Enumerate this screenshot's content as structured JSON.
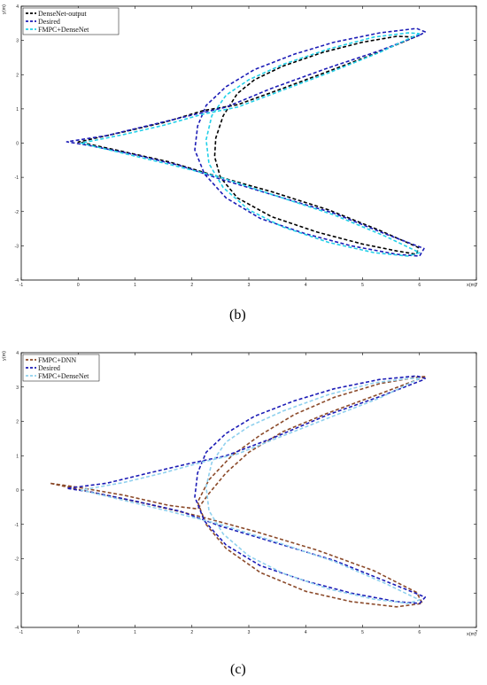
{
  "captions": {
    "b": "(b)",
    "c": "(c)"
  },
  "chart_data": [
    {
      "id": "b",
      "type": "line",
      "xlabel": "x(m)",
      "ylabel": "y(m)",
      "xlim": [
        -1,
        7
      ],
      "ylim": [
        -4,
        4
      ],
      "xticks": [
        -1,
        0,
        1,
        2,
        3,
        4,
        5,
        6,
        7
      ],
      "yticks": [
        -4,
        -3,
        -2,
        -1,
        0,
        1,
        2,
        3,
        4
      ],
      "legend_position": "top-left",
      "series": [
        {
          "name": "DenseNet-output",
          "color": "#000000",
          "points": [
            [
              5.92,
              3.1
            ],
            [
              5.2,
              2.6
            ],
            [
              4.4,
              2.1
            ],
            [
              3.6,
              1.6
            ],
            [
              2.8,
              1.12
            ],
            [
              2.2,
              0.95
            ],
            [
              1.5,
              0.6
            ],
            [
              0.8,
              0.33
            ],
            [
              0,
              0.03
            ],
            [
              0.05,
              0.02
            ],
            [
              0.8,
              -0.25
            ],
            [
              1.6,
              -0.55
            ],
            [
              2.4,
              -0.95
            ],
            [
              3.4,
              -1.42
            ],
            [
              4.4,
              -1.95
            ],
            [
              5.3,
              -2.55
            ],
            [
              5.98,
              -3.05
            ],
            [
              5.95,
              -3.25
            ],
            [
              5.6,
              -3.15
            ],
            [
              5.0,
              -2.95
            ],
            [
              4.2,
              -2.6
            ],
            [
              3.4,
              -2.15
            ],
            [
              2.8,
              -1.6
            ],
            [
              2.5,
              -1.0
            ],
            [
              2.4,
              -0.4
            ],
            [
              2.42,
              0.15
            ],
            [
              2.55,
              0.8
            ],
            [
              2.8,
              1.45
            ],
            [
              3.1,
              1.85
            ],
            [
              3.6,
              2.25
            ],
            [
              4.3,
              2.65
            ],
            [
              5.0,
              2.95
            ],
            [
              5.6,
              3.12
            ],
            [
              5.92,
              3.1
            ]
          ]
        },
        {
          "name": "Desired",
          "color": "#1c1cb6",
          "points": [
            [
              6.0,
              3.15
            ],
            [
              5.3,
              2.7
            ],
            [
              4.4,
              2.2
            ],
            [
              3.4,
              1.6
            ],
            [
              2.6,
              1.05
            ],
            [
              1.9,
              0.78
            ],
            [
              1.2,
              0.5
            ],
            [
              0.5,
              0.22
            ],
            [
              -0.2,
              0.04
            ],
            [
              0.2,
              -0.07
            ],
            [
              1.0,
              -0.34
            ],
            [
              1.8,
              -0.66
            ],
            [
              2.5,
              -1.05
            ],
            [
              3.5,
              -1.55
            ],
            [
              4.5,
              -2.05
            ],
            [
              5.4,
              -2.65
            ],
            [
              6.08,
              -3.08
            ],
            [
              6.0,
              -3.3
            ],
            [
              5.6,
              -3.25
            ],
            [
              4.8,
              -3.0
            ],
            [
              4.0,
              -2.65
            ],
            [
              3.2,
              -2.2
            ],
            [
              2.6,
              -1.6
            ],
            [
              2.22,
              -0.9
            ],
            [
              2.05,
              -0.2
            ],
            [
              2.1,
              0.5
            ],
            [
              2.25,
              1.1
            ],
            [
              2.6,
              1.65
            ],
            [
              3.1,
              2.15
            ],
            [
              3.8,
              2.6
            ],
            [
              4.5,
              2.95
            ],
            [
              5.3,
              3.22
            ],
            [
              5.95,
              3.35
            ],
            [
              6.1,
              3.25
            ],
            [
              6.0,
              3.15
            ]
          ]
        },
        {
          "name": "FMPC+DenseNet",
          "color": "#22d0e8",
          "points": [
            [
              6.0,
              3.2
            ],
            [
              5.3,
              2.65
            ],
            [
              4.4,
              2.05
            ],
            [
              3.6,
              1.55
            ],
            [
              2.8,
              1.05
            ],
            [
              2.2,
              0.85
            ],
            [
              1.5,
              0.52
            ],
            [
              0.8,
              0.25
            ],
            [
              0.05,
              0.0
            ],
            [
              0.8,
              -0.3
            ],
            [
              1.6,
              -0.62
            ],
            [
              2.5,
              -1.0
            ],
            [
              3.5,
              -1.55
            ],
            [
              4.5,
              -2.1
            ],
            [
              5.4,
              -2.72
            ],
            [
              6.0,
              -3.2
            ],
            [
              5.8,
              -3.3
            ],
            [
              5.2,
              -3.2
            ],
            [
              4.4,
              -2.9
            ],
            [
              3.6,
              -2.45
            ],
            [
              3.0,
              -1.95
            ],
            [
              2.55,
              -1.3
            ],
            [
              2.3,
              -0.6
            ],
            [
              2.25,
              0.1
            ],
            [
              2.35,
              0.8
            ],
            [
              2.6,
              1.4
            ],
            [
              3.0,
              1.85
            ],
            [
              3.6,
              2.3
            ],
            [
              4.4,
              2.75
            ],
            [
              5.2,
              3.1
            ],
            [
              5.8,
              3.22
            ],
            [
              6.0,
              3.2
            ]
          ]
        }
      ]
    },
    {
      "id": "c",
      "type": "line",
      "xlabel": "x(m)",
      "ylabel": "y(m)",
      "xlim": [
        -1,
        7
      ],
      "ylim": [
        -4,
        4
      ],
      "xticks": [
        -1,
        0,
        1,
        2,
        3,
        4,
        5,
        6,
        7
      ],
      "yticks": [
        -4,
        -3,
        -2,
        -1,
        0,
        1,
        2,
        3,
        4
      ],
      "legend_position": "top-left",
      "series": [
        {
          "name": "FMPC+DNN",
          "color": "#8b4a2a",
          "points": [
            [
              6.1,
              3.3
            ],
            [
              5.3,
              2.8
            ],
            [
              4.4,
              2.25
            ],
            [
              3.6,
              1.7
            ],
            [
              3.0,
              1.1
            ],
            [
              2.6,
              0.5
            ],
            [
              2.3,
              -0.1
            ],
            [
              2.1,
              -0.55
            ],
            [
              1.6,
              -0.45
            ],
            [
              0.8,
              -0.15
            ],
            [
              0.0,
              0.08
            ],
            [
              -0.5,
              0.2
            ],
            [
              0.2,
              -0.05
            ],
            [
              1.2,
              -0.4
            ],
            [
              2.1,
              -0.75
            ],
            [
              3.1,
              -1.2
            ],
            [
              4.2,
              -1.75
            ],
            [
              5.2,
              -2.35
            ],
            [
              5.95,
              -2.98
            ],
            [
              6.05,
              -3.3
            ],
            [
              5.6,
              -3.4
            ],
            [
              4.8,
              -3.25
            ],
            [
              4.0,
              -2.95
            ],
            [
              3.2,
              -2.4
            ],
            [
              2.6,
              -1.7
            ],
            [
              2.25,
              -1.0
            ],
            [
              2.1,
              -0.35
            ],
            [
              2.3,
              0.3
            ],
            [
              2.7,
              1.0
            ],
            [
              3.2,
              1.6
            ],
            [
              3.8,
              2.2
            ],
            [
              4.5,
              2.7
            ],
            [
              5.3,
              3.1
            ],
            [
              6.0,
              3.3
            ],
            [
              6.1,
              3.3
            ]
          ]
        },
        {
          "name": "Desired",
          "color": "#1c1cb6",
          "points": [
            [
              6.05,
              3.2
            ],
            [
              5.3,
              2.72
            ],
            [
              4.4,
              2.2
            ],
            [
              3.4,
              1.5
            ],
            [
              2.6,
              1.0
            ],
            [
              1.9,
              0.75
            ],
            [
              1.2,
              0.48
            ],
            [
              0.5,
              0.2
            ],
            [
              -0.2,
              0.05
            ],
            [
              0.2,
              -0.05
            ],
            [
              1.0,
              -0.32
            ],
            [
              1.8,
              -0.62
            ],
            [
              2.5,
              -1.05
            ],
            [
              3.5,
              -1.55
            ],
            [
              4.5,
              -2.05
            ],
            [
              5.4,
              -2.65
            ],
            [
              6.1,
              -3.12
            ],
            [
              6.0,
              -3.3
            ],
            [
              5.6,
              -3.25
            ],
            [
              4.8,
              -3.0
            ],
            [
              4.0,
              -2.65
            ],
            [
              3.2,
              -2.2
            ],
            [
              2.6,
              -1.6
            ],
            [
              2.22,
              -0.9
            ],
            [
              2.05,
              -0.2
            ],
            [
              2.1,
              0.5
            ],
            [
              2.25,
              1.1
            ],
            [
              2.6,
              1.65
            ],
            [
              3.1,
              2.15
            ],
            [
              3.8,
              2.6
            ],
            [
              4.5,
              2.95
            ],
            [
              5.3,
              3.22
            ],
            [
              5.95,
              3.32
            ],
            [
              6.1,
              3.25
            ],
            [
              6.05,
              3.2
            ]
          ]
        },
        {
          "name": "FMPC+DenseNet",
          "color": "#8fd0ee",
          "points": [
            [
              6.0,
              3.25
            ],
            [
              5.3,
              2.68
            ],
            [
              4.4,
              2.1
            ],
            [
              3.6,
              1.58
            ],
            [
              2.8,
              1.05
            ],
            [
              2.2,
              0.82
            ],
            [
              1.5,
              0.5
            ],
            [
              0.8,
              0.22
            ],
            [
              0.05,
              0.0
            ],
            [
              0.8,
              -0.3
            ],
            [
              1.6,
              -0.62
            ],
            [
              2.5,
              -1.0
            ],
            [
              3.5,
              -1.52
            ],
            [
              4.5,
              -2.08
            ],
            [
              5.4,
              -2.72
            ],
            [
              6.0,
              -3.2
            ],
            [
              5.8,
              -3.3
            ],
            [
              5.2,
              -3.18
            ],
            [
              4.4,
              -2.88
            ],
            [
              3.6,
              -2.42
            ],
            [
              3.0,
              -1.92
            ],
            [
              2.55,
              -1.28
            ],
            [
              2.3,
              -0.6
            ],
            [
              2.25,
              0.1
            ],
            [
              2.35,
              0.8
            ],
            [
              2.6,
              1.4
            ],
            [
              3.0,
              1.85
            ],
            [
              3.6,
              2.3
            ],
            [
              4.4,
              2.78
            ],
            [
              5.2,
              3.12
            ],
            [
              5.8,
              3.25
            ],
            [
              6.0,
              3.25
            ]
          ]
        }
      ]
    }
  ]
}
